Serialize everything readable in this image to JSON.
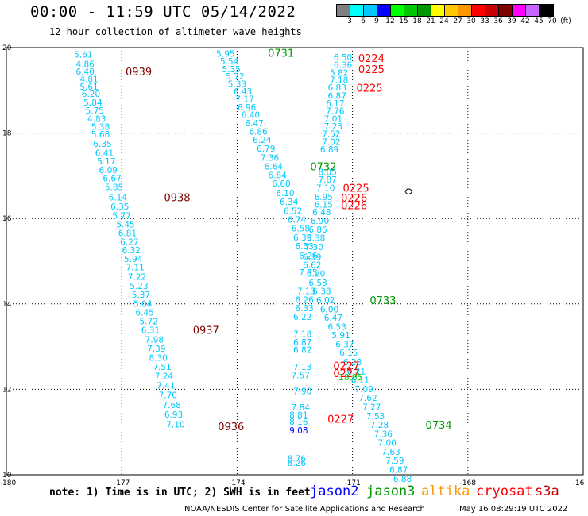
{
  "title": "00:00 - 11:59 UTC 05/14/2022",
  "subtitle": "12 hour collection of altimeter wave heights",
  "colorbar": {
    "colors": [
      "#808080",
      "#00ffff",
      "#00c8ff",
      "#0000ff",
      "#00ff00",
      "#00c800",
      "#009600",
      "#ffff00",
      "#ffc800",
      "#ff9600",
      "#ff0000",
      "#c80000",
      "#800000",
      "#ff00ff",
      "#c864ff",
      "#000000"
    ],
    "labels": [
      "3",
      "6",
      "9",
      "12",
      "15",
      "18",
      "21",
      "24",
      "27",
      "30",
      "33",
      "36",
      "39",
      "42",
      "45",
      "70",
      "(ft)"
    ]
  },
  "map": {
    "x_range": [
      -180,
      -165
    ],
    "y_range": [
      10,
      20
    ],
    "x_ticks": [
      "-180",
      "-177",
      "-174",
      "-171",
      "-168",
      "-16"
    ],
    "y_ticks": [
      "20",
      "18",
      "16",
      "14",
      "12",
      "10"
    ],
    "island_icon": "island-icon",
    "track_color": "#00c8ff",
    "track_color_dark": "#3c78b4",
    "tracks": [
      {
        "name": "track-a",
        "points": [
          [
            "5.61",
            -178.0,
            19.84
          ],
          [
            "4.86",
            -177.95,
            19.62
          ],
          [
            "6.40",
            -177.95,
            19.44
          ],
          [
            "4.81",
            -177.85,
            19.27
          ],
          [
            "5.61",
            -177.85,
            19.09
          ],
          [
            "6.20",
            -177.8,
            18.92
          ],
          [
            "5.84",
            -177.75,
            18.72
          ],
          [
            "5.75",
            -177.7,
            18.53
          ],
          [
            "4.83",
            -177.65,
            18.34
          ],
          [
            "5.38",
            -177.55,
            18.15
          ],
          [
            "5.68",
            -177.55,
            17.97
          ],
          [
            "6.35",
            -177.5,
            17.75
          ],
          [
            "6.41",
            -177.45,
            17.54
          ],
          [
            "5.17",
            -177.4,
            17.34
          ],
          [
            "6.09",
            -177.35,
            17.14
          ],
          [
            "6.67",
            -177.25,
            16.94
          ],
          [
            "5.85",
            -177.2,
            16.74
          ],
          [
            "6.14",
            -177.1,
            16.5
          ],
          [
            "6.35",
            -177.05,
            16.28
          ],
          [
            "5.77",
            -177.0,
            16.07
          ],
          [
            "5.45",
            -176.9,
            15.86
          ],
          [
            "6.81",
            -176.85,
            15.66
          ],
          [
            "6.27",
            -176.8,
            15.46
          ],
          [
            "6.32",
            -176.75,
            15.26
          ],
          [
            "5.94",
            -176.7,
            15.06
          ],
          [
            "7.11",
            -176.65,
            14.86
          ],
          [
            "7.22",
            -176.6,
            14.64
          ],
          [
            "5.23",
            -176.55,
            14.42
          ],
          [
            "5.37",
            -176.5,
            14.22
          ],
          [
            "5.04",
            -176.45,
            14.01
          ],
          [
            "6.45",
            -176.4,
            13.8
          ],
          [
            "5.72",
            -176.3,
            13.6
          ],
          [
            "6.31",
            -176.25,
            13.39
          ],
          [
            "7.98",
            -176.15,
            13.17
          ],
          [
            "7.39",
            -176.1,
            12.96
          ],
          [
            "8.30",
            -176.05,
            12.74
          ],
          [
            "7.51",
            -175.95,
            12.53
          ],
          [
            "7.24",
            -175.9,
            12.31
          ],
          [
            "7.41",
            -175.85,
            12.09
          ],
          [
            "7.70",
            -175.8,
            11.87
          ],
          [
            "7.68",
            -175.7,
            11.64
          ],
          [
            "6.93",
            -175.65,
            11.41
          ],
          [
            "7.10",
            -175.6,
            11.18
          ]
        ]
      },
      {
        "name": "track-b",
        "points": [
          [
            "5.95",
            -174.3,
            19.86
          ],
          [
            "5.54",
            -174.2,
            19.68
          ],
          [
            "5.35",
            -174.15,
            19.5
          ],
          [
            "5.72",
            -174.05,
            19.33
          ],
          [
            "5.33",
            -174.0,
            19.15
          ],
          [
            "6.43",
            -173.85,
            18.98
          ],
          [
            "7.17",
            -173.8,
            18.8
          ],
          [
            "6.96",
            -173.75,
            18.61
          ],
          [
            "6.40",
            -173.65,
            18.43
          ],
          [
            "6.47",
            -173.55,
            18.23
          ],
          [
            "6.86",
            -173.45,
            18.04
          ],
          [
            "6.24",
            -173.35,
            17.84
          ],
          [
            "6.79",
            -173.25,
            17.64
          ],
          [
            "7.36",
            -173.15,
            17.43
          ],
          [
            "6.64",
            -173.05,
            17.22
          ],
          [
            "6.84",
            -172.95,
            17.02
          ],
          [
            "6.60",
            -172.85,
            16.82
          ],
          [
            "6.10",
            -172.75,
            16.6
          ],
          [
            "6.34",
            -172.65,
            16.39
          ],
          [
            "6.52",
            -172.55,
            16.18
          ],
          [
            "6.74",
            -172.45,
            15.98
          ],
          [
            "6.58",
            -172.35,
            15.77
          ],
          [
            "6.39",
            -172.3,
            15.56
          ],
          [
            "6.53",
            -172.25,
            15.35
          ],
          [
            "6.26",
            -172.15,
            15.13
          ],
          [
            "6.62",
            -172.05,
            14.92
          ],
          [
            "6.20",
            -171.95,
            14.71
          ],
          [
            "6.58",
            -171.9,
            14.5
          ],
          [
            "6.38",
            -171.8,
            14.3
          ],
          [
            "6.02",
            -171.7,
            14.09
          ],
          [
            "6.00",
            -171.6,
            13.88
          ],
          [
            "6.47",
            -171.5,
            13.68
          ],
          [
            "6.53",
            -171.4,
            13.47
          ],
          [
            "5.91",
            -171.3,
            13.27
          ],
          [
            "6.37",
            -171.2,
            13.06
          ],
          [
            "6.15",
            -171.1,
            12.86
          ],
          [
            "6.28",
            -171.0,
            12.64
          ],
          [
            "6.21",
            -170.9,
            12.43
          ],
          [
            "6.11",
            -170.8,
            12.22
          ],
          [
            "7.09",
            -170.7,
            12.01
          ],
          [
            "7.62",
            -170.6,
            11.8
          ],
          [
            "7.27",
            -170.5,
            11.59
          ],
          [
            "7.53",
            -170.4,
            11.38
          ],
          [
            "7.28",
            -170.3,
            11.17
          ],
          [
            "7.36",
            -170.2,
            10.96
          ],
          [
            "7.00",
            -170.1,
            10.75
          ],
          [
            "7.63",
            -170.0,
            10.54
          ],
          [
            "7.59",
            -169.9,
            10.33
          ],
          [
            "6.87",
            -169.8,
            10.12
          ],
          [
            "6.88",
            -169.7,
            9.91
          ]
        ]
      },
      {
        "name": "track-c",
        "points": [
          [
            "6.50",
            -171.25,
            19.78
          ],
          [
            "6.36",
            -171.25,
            19.6
          ],
          [
            "5.82",
            -171.35,
            19.41
          ],
          [
            "7.18",
            -171.35,
            19.25
          ],
          [
            "6.83",
            -171.4,
            19.07
          ],
          [
            "6.87",
            -171.4,
            18.88
          ],
          [
            "6.17",
            -171.45,
            18.7
          ],
          [
            "7.76",
            -171.45,
            18.52
          ],
          [
            "7.01",
            -171.5,
            18.34
          ],
          [
            "7.23",
            -171.5,
            18.16
          ],
          [
            "7.52",
            -171.55,
            17.98
          ],
          [
            "7.02",
            -171.55,
            17.8
          ],
          [
            "6.89",
            -171.6,
            17.62
          ],
          [
            "8.05",
            -171.65,
            17.09
          ],
          [
            "7.87",
            -171.65,
            16.91
          ],
          [
            "7.10",
            -171.7,
            16.72
          ],
          [
            "6.95",
            -171.75,
            16.51
          ],
          [
            "6.15",
            -171.75,
            16.33
          ],
          [
            "6.48",
            -171.8,
            16.15
          ],
          [
            "6.90",
            -171.85,
            15.95
          ],
          [
            "6.86",
            -171.9,
            15.74
          ],
          [
            "6.38",
            -171.95,
            15.55
          ],
          [
            "7.30",
            -172.0,
            15.33
          ],
          [
            "6.39",
            -172.05,
            15.1
          ],
          [
            "7.55",
            -172.15,
            14.74
          ],
          [
            "7.13",
            -172.2,
            14.3
          ],
          [
            "6.26",
            -172.25,
            14.1
          ],
          [
            "6.33",
            -172.25,
            13.9
          ],
          [
            "6.22",
            -172.3,
            13.7
          ],
          [
            "7.18",
            -172.3,
            13.3
          ],
          [
            "6.87",
            -172.3,
            13.1
          ],
          [
            "6.82",
            -172.3,
            12.93
          ],
          [
            "7.13",
            -172.3,
            12.53
          ],
          [
            "7.57",
            -172.35,
            12.33
          ],
          [
            "7.90",
            -172.3,
            11.96
          ],
          [
            "7.84",
            -172.35,
            11.58
          ],
          [
            "8.81",
            -172.4,
            11.4
          ],
          [
            "8.16",
            -172.4,
            11.25
          ],
          [
            "8.76",
            -172.45,
            10.38
          ],
          [
            "8.26",
            -172.45,
            10.28
          ]
        ]
      },
      {
        "name": "track-c-blue",
        "points": [
          [
            "9.08",
            -172.4,
            11.04
          ]
        ]
      }
    ],
    "time_labels": [
      {
        "text": "0939",
        "lon": -176.9,
        "lat": 19.44,
        "color": "#800000"
      },
      {
        "text": "0938",
        "lon": -175.9,
        "lat": 16.5,
        "color": "#800000"
      },
      {
        "text": "0937",
        "lon": -175.15,
        "lat": 13.39,
        "color": "#800000"
      },
      {
        "text": "0936",
        "lon": -174.5,
        "lat": 11.13,
        "color": "#800000"
      },
      {
        "text": "0731",
        "lon": -173.2,
        "lat": 19.88,
        "color": "#009600"
      },
      {
        "text": "0732",
        "lon": -172.1,
        "lat": 17.22,
        "color": "#009600"
      },
      {
        "text": "0733",
        "lon": -170.55,
        "lat": 14.09,
        "color": "#009600"
      },
      {
        "text": "0734",
        "lon": -169.1,
        "lat": 11.17,
        "color": "#009600"
      },
      {
        "text": "0224",
        "lon": -170.85,
        "lat": 19.76,
        "color": "#ff0000"
      },
      {
        "text": "0225",
        "lon": -170.85,
        "lat": 19.5,
        "color": "#ff0000"
      },
      {
        "text": "0225",
        "lon": -170.9,
        "lat": 19.06,
        "color": "#ff0000"
      },
      {
        "text": "0225",
        "lon": -171.25,
        "lat": 16.72,
        "color": "#ff0000"
      },
      {
        "text": "0226",
        "lon": -171.3,
        "lat": 16.49,
        "color": "#ff0000"
      },
      {
        "text": "0226",
        "lon": -171.3,
        "lat": 16.31,
        "color": "#ff0000"
      },
      {
        "text": "0227",
        "lon": -171.5,
        "lat": 12.56,
        "color": "#ff0000"
      },
      {
        "text": "0227",
        "lon": -171.5,
        "lat": 12.38,
        "color": "#ff0000"
      },
      {
        "text": "0227",
        "lon": -171.65,
        "lat": 11.31,
        "color": "#ff0000"
      }
    ],
    "extra_values": [
      {
        "text": "18.05",
        "lon": -171.05,
        "lat": 12.29,
        "color": "#00c800"
      }
    ]
  },
  "note": "note: 1) Time is in UTC; 2) SWH is in feet",
  "legend": [
    {
      "name": "jason2",
      "color": "#0000ff"
    },
    {
      "name": "jason3",
      "color": "#009600"
    },
    {
      "name": "altika",
      "color": "#ff9600"
    },
    {
      "name": "cryosat",
      "color": "#ff0000"
    },
    {
      "name": "s3a",
      "color": "#c80000"
    }
  ],
  "credit": "NOAA/NESDIS Center for Satellite Applications and Research",
  "timestamp": "May 16 08:29:19 UTC 2022"
}
